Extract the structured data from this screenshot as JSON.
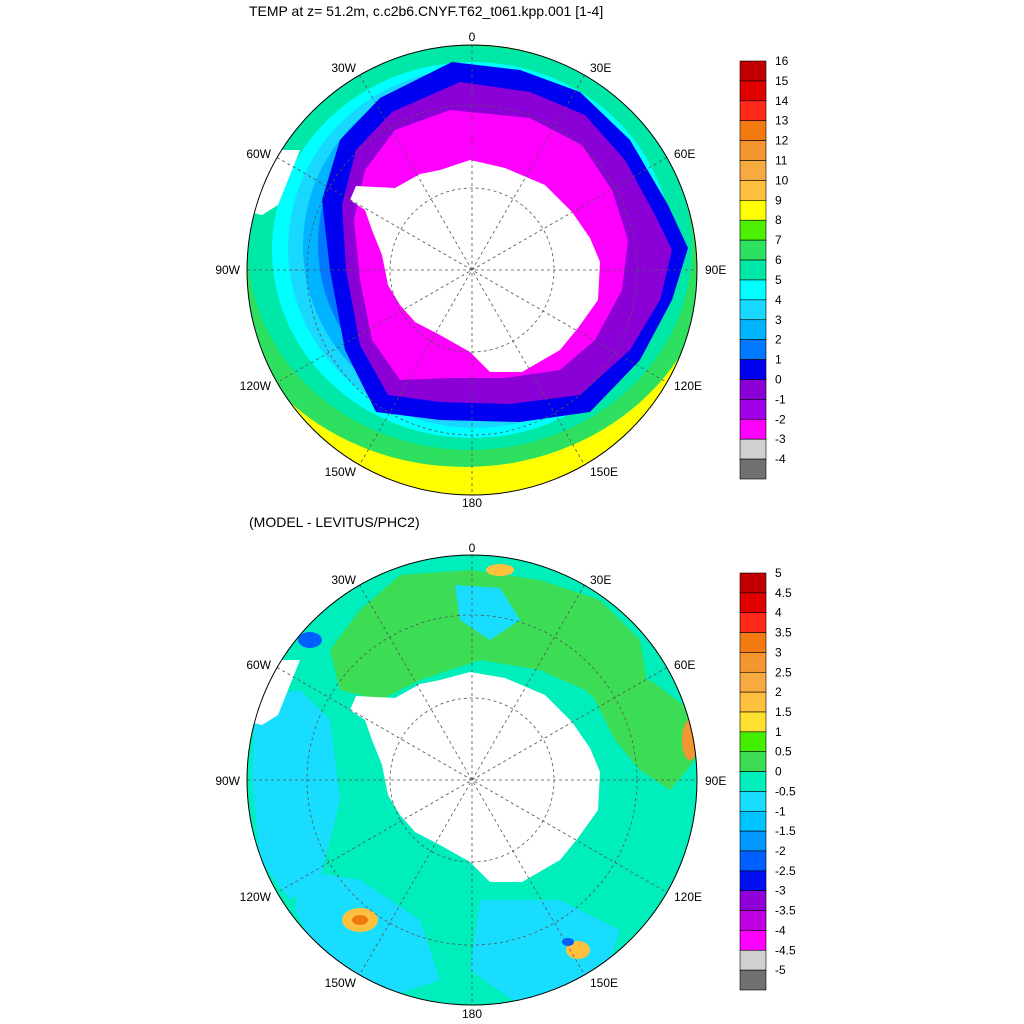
{
  "panels": [
    {
      "title": "TEMP at z=  51.2m, c.c2b6.CNYF.T62_t061.kpp.001 [1-4]",
      "longitude_labels": {
        "lon_0": "0",
        "lon_30e": "30E",
        "lon_60e": "60E",
        "lon_90e": "90E",
        "lon_120e": "120E",
        "lon_150e": "150E",
        "lon_180": "180",
        "lon_150w": "150W",
        "lon_120w": "120W",
        "lon_90w": "90W",
        "lon_60w": "60W",
        "lon_30w": "30W"
      },
      "colorbar": {
        "labels": [
          "16",
          "15",
          "14",
          "13",
          "12",
          "11",
          "10",
          "9",
          "8",
          "7",
          "6",
          "5",
          "4",
          "3",
          "2",
          "1",
          "0",
          "-1",
          "-2",
          "-3",
          "-4"
        ],
        "colors": [
          "#c00000",
          "#e00000",
          "#ff2a1a",
          "#f27a10",
          "#f59530",
          "#f7aa3f",
          "#ffc13d",
          "#ffff00",
          "#4df000",
          "#2ee060",
          "#00e8a8",
          "#00ffff",
          "#18d8ff",
          "#00b4ff",
          "#0078ff",
          "#0000f0",
          "#8c00d8",
          "#a000e8",
          "#ff00ff",
          "#d0d0d0",
          "#707070"
        ]
      }
    },
    {
      "title": "(MODEL - LEVITUS/PHC2)",
      "longitude_labels": {
        "lon_0": "0",
        "lon_30e": "30E",
        "lon_60e": "60E",
        "lon_90e": "90E",
        "lon_120e": "120E",
        "lon_150e": "150E",
        "lon_180": "180",
        "lon_150w": "150W",
        "lon_120w": "120W",
        "lon_90w": "90W",
        "lon_60w": "60W",
        "lon_30w": "30W"
      },
      "colorbar": {
        "labels": [
          "5",
          "4.5",
          "4",
          "3.5",
          "3",
          "2.5",
          "2",
          "1.5",
          "1",
          "0.5",
          "0",
          "-0.5",
          "-1",
          "-1.5",
          "-2",
          "-2.5",
          "-3",
          "-3.5",
          "-4",
          "-4.5",
          "-5"
        ],
        "colors": [
          "#c00000",
          "#e00000",
          "#ff2a1a",
          "#f27a10",
          "#f59530",
          "#f7aa3f",
          "#ffc13d",
          "#ffe030",
          "#44ee00",
          "#3cdd55",
          "#00eebb",
          "#18ddff",
          "#00c4ff",
          "#0098ff",
          "#0060ff",
          "#0010f0",
          "#9000d8",
          "#c000e0",
          "#ff00ff",
          "#d0d0d0",
          "#707070"
        ]
      }
    }
  ]
}
